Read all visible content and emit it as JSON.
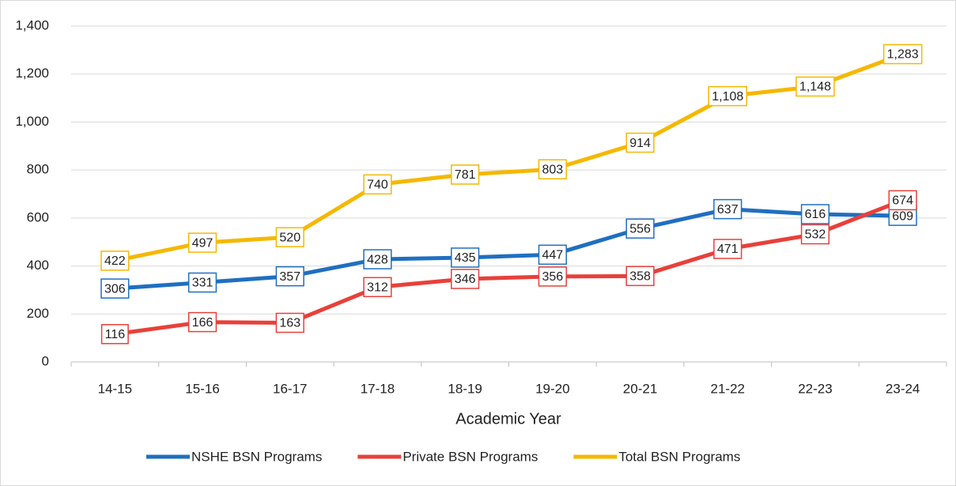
{
  "chart_data": {
    "type": "line",
    "x_label": "Academic Year",
    "categories": [
      "14-15",
      "15-16",
      "16-17",
      "17-18",
      "18-19",
      "19-20",
      "20-21",
      "21-22",
      "22-23",
      "23-24"
    ],
    "series": [
      {
        "name": "NSHE BSN Programs",
        "color": "#1f6fc0",
        "values": [
          306,
          331,
          357,
          428,
          435,
          447,
          556,
          637,
          616,
          609
        ]
      },
      {
        "name": "Private BSN Programs",
        "color": "#e8403a",
        "values": [
          116,
          166,
          163,
          312,
          346,
          356,
          358,
          471,
          532,
          674
        ]
      },
      {
        "name": "Total BSN Programs",
        "color": "#f5b800",
        "values": [
          422,
          497,
          520,
          740,
          781,
          803,
          914,
          1108,
          1148,
          1283
        ],
        "value_labels": [
          "422",
          "497",
          "520",
          "740",
          "781",
          "803",
          "914",
          "1,108",
          "1,148",
          "1,283"
        ]
      }
    ],
    "ylim": [
      0,
      1400
    ],
    "yticks": [
      0,
      200,
      400,
      600,
      800,
      {
        "value": 1000,
        "label": "1,000"
      },
      {
        "value": 1200,
        "label": "1,200"
      },
      {
        "value": 1400,
        "label": "1,400"
      }
    ],
    "grid": true,
    "legend": "bottom"
  }
}
